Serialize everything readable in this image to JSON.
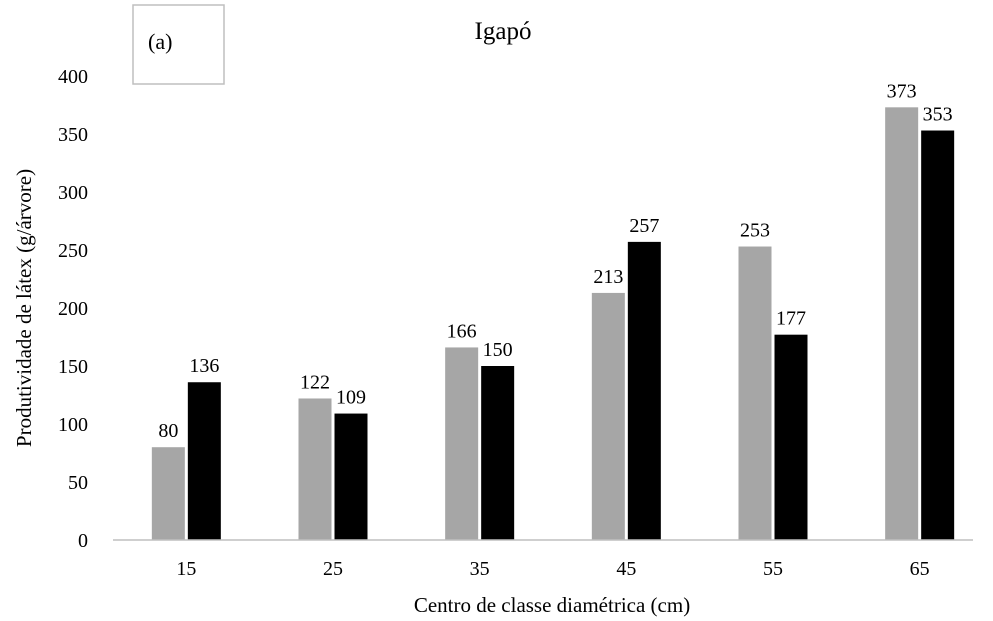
{
  "chart_data": {
    "type": "bar",
    "title": "Igapó",
    "panel_label": "(a)",
    "xlabel": "Centro de classe diamétrica (cm)",
    "ylabel": "Produtividade de látex (g/árvore)",
    "categories": [
      "15",
      "25",
      "35",
      "45",
      "55",
      "65"
    ],
    "series": [
      {
        "values": [
          80,
          122,
          166,
          213,
          253,
          373
        ],
        "color": "#a6a6a6"
      },
      {
        "values": [
          136,
          109,
          150,
          257,
          177,
          353
        ],
        "color": "#000000"
      }
    ],
    "ylim": [
      0,
      400
    ],
    "yticks": [
      0,
      50,
      100,
      150,
      200,
      250,
      300,
      350,
      400
    ],
    "grid": false,
    "data_labels": true
  }
}
